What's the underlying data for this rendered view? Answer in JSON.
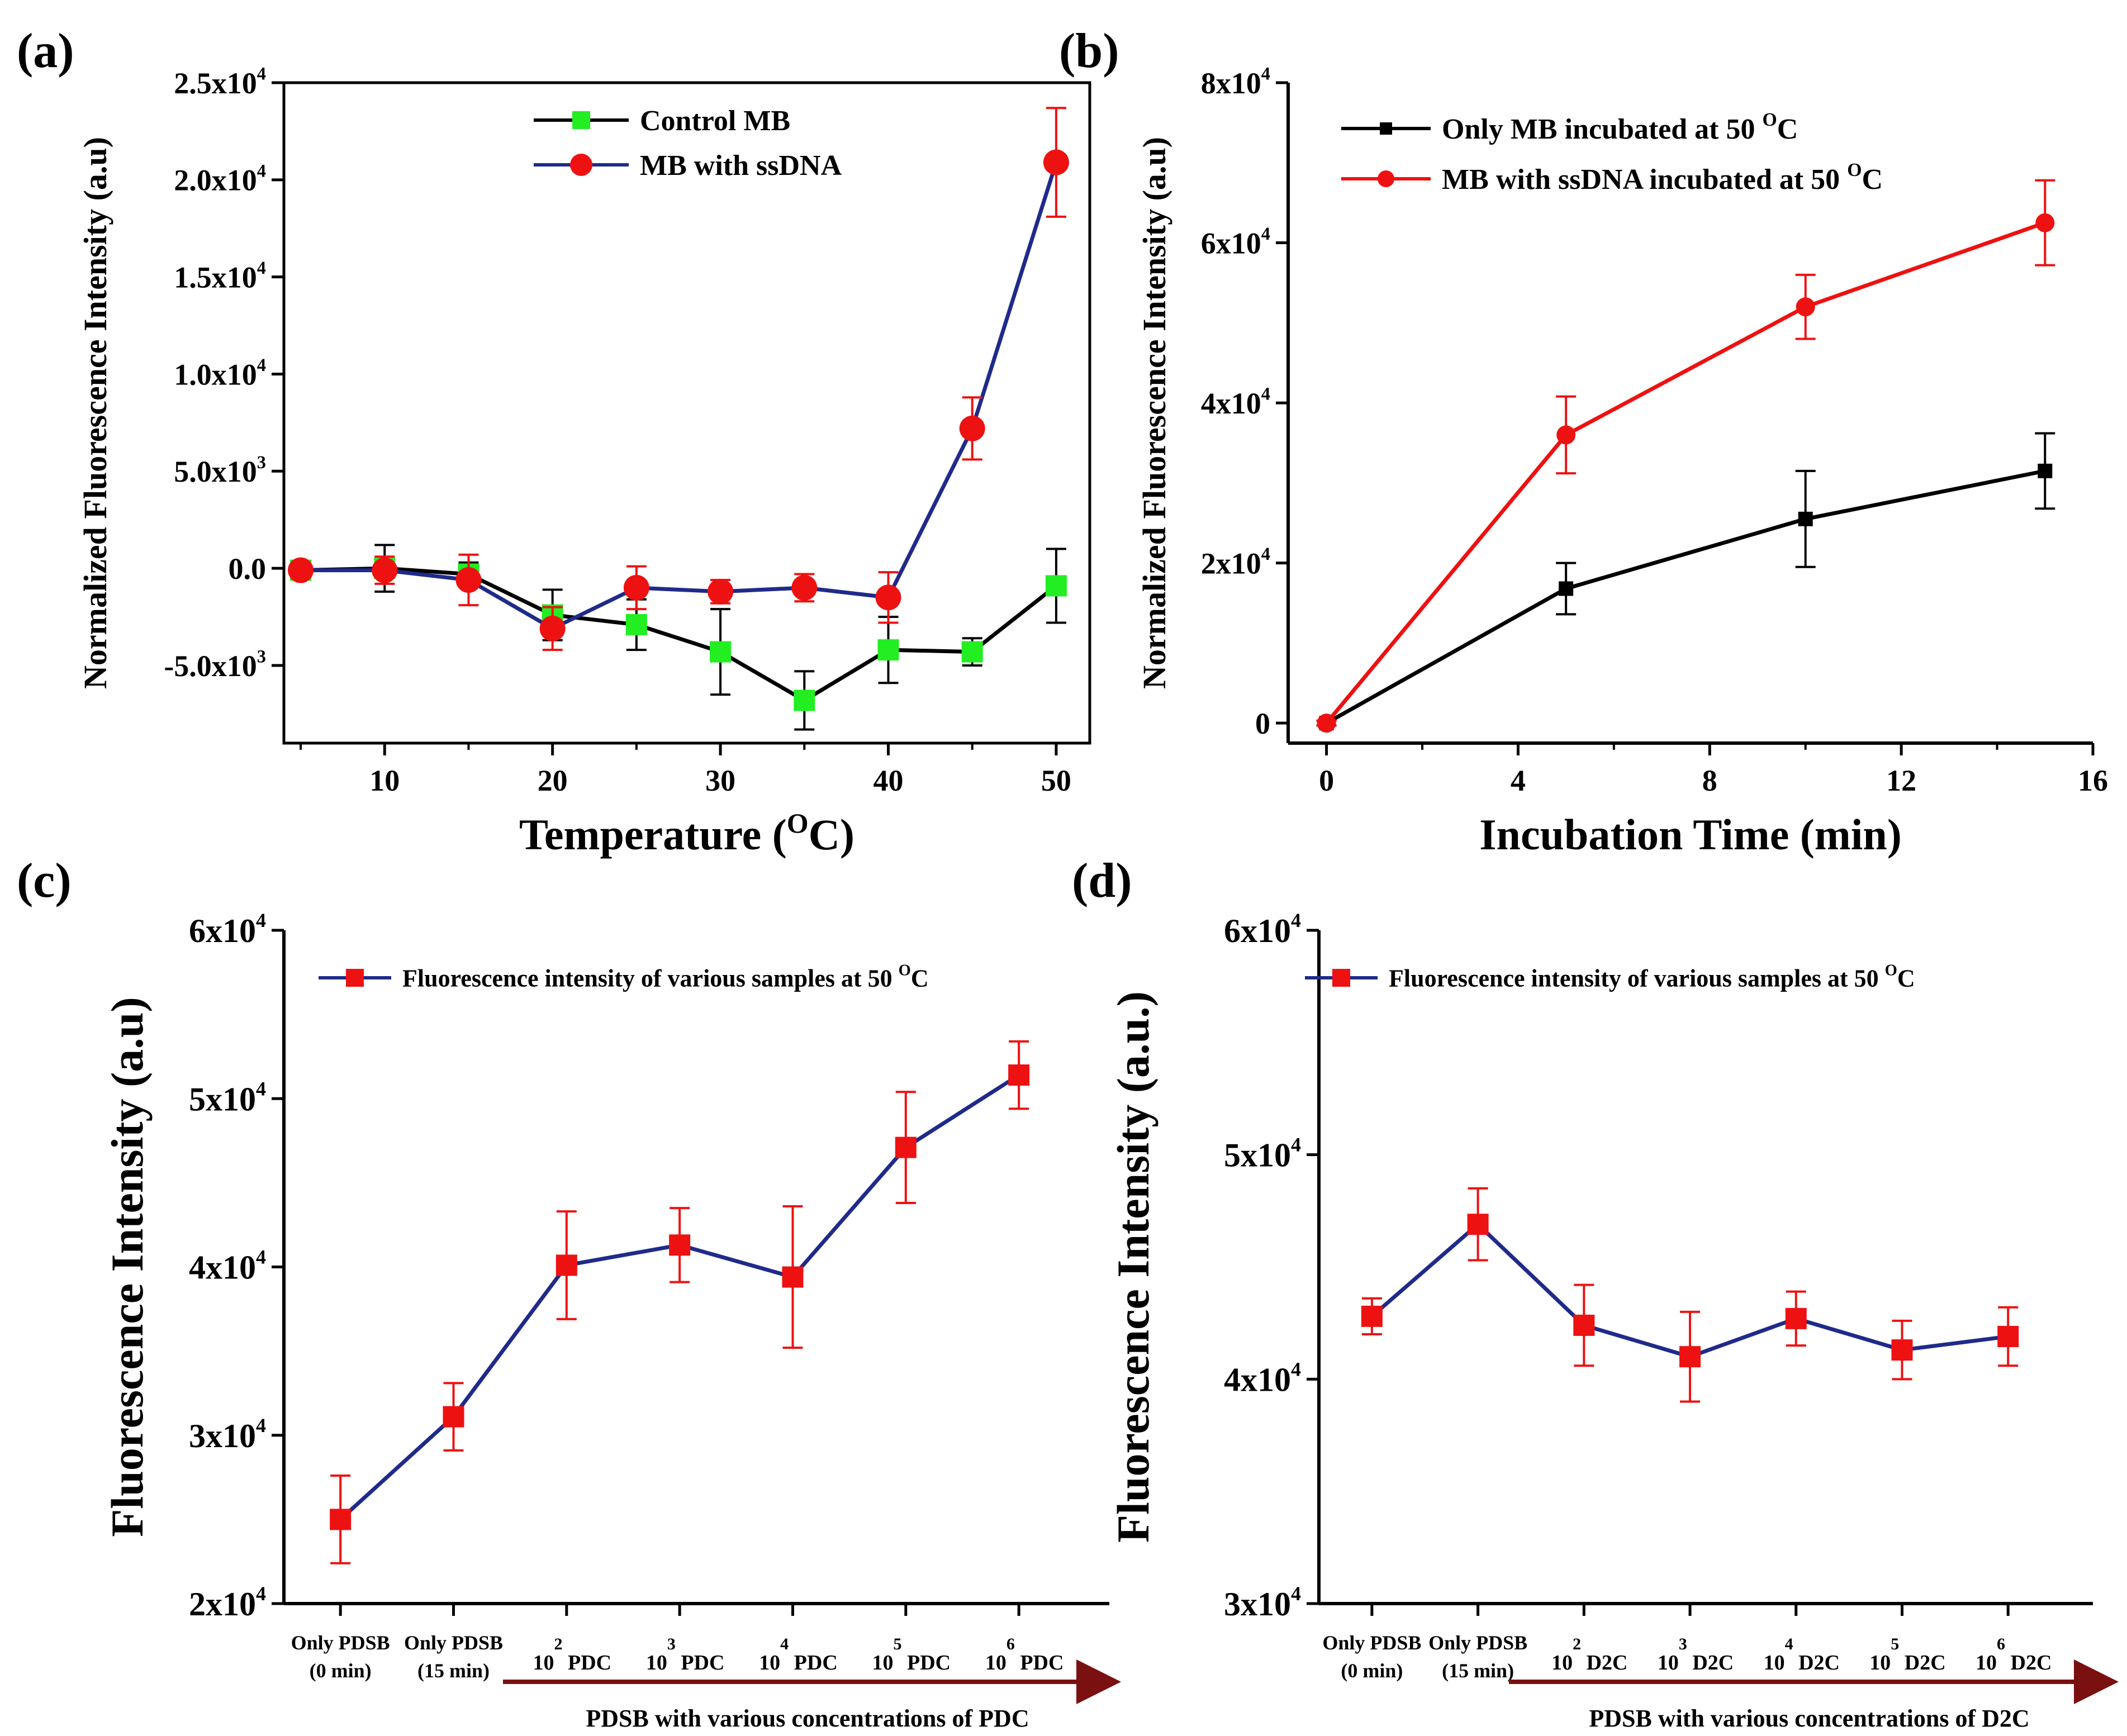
{
  "figure": {
    "arrow_color": "#7a1010"
  },
  "chart_data": [
    {
      "id": "a",
      "panel_label": "(a)",
      "type": "line",
      "xlabel": "Temperature",
      "xlabel_sup": "O",
      "xlabel_unit": "C)",
      "xlabel_open": "(",
      "ylabel": "Normalized Fluorescence Intensity (a.u)",
      "xlim": [
        4,
        52
      ],
      "ylim": [
        -9000,
        25000
      ],
      "x_ticks": [
        10,
        20,
        30,
        40,
        50
      ],
      "x_tick_labels": [
        "10",
        "20",
        "30",
        "40",
        "50"
      ],
      "y_ticks": [
        -5000,
        0,
        5000,
        10000,
        15000,
        20000,
        25000
      ],
      "y_tick_labels": [
        {
          "mant": "-5.0x10",
          "exp": "3"
        },
        {
          "mant": "0.0",
          "exp": ""
        },
        {
          "mant": "5.0x10",
          "exp": "3"
        },
        {
          "mant": "1.0x10",
          "exp": "4"
        },
        {
          "mant": "1.5x10",
          "exp": "4"
        },
        {
          "mant": "2.0x10",
          "exp": "4"
        },
        {
          "mant": "2.5x10",
          "exp": "4"
        }
      ],
      "legend_position": "top-center",
      "series": [
        {
          "name": "Control MB",
          "line_color": "#000000",
          "marker_color": "#22ee22",
          "marker": "square",
          "x": [
            5,
            10,
            15,
            20,
            25,
            30,
            35,
            40,
            45,
            50
          ],
          "values": [
            -100,
            0,
            -300,
            -2400,
            -2900,
            -4300,
            -6800,
            -4200,
            -4300,
            -900
          ],
          "errors": [
            200,
            1200,
            600,
            1300,
            1300,
            2200,
            1500,
            1700,
            700,
            1900
          ]
        },
        {
          "name": "MB with ssDNA",
          "line_color": "#1f2a8a",
          "marker_color": "#ee1111",
          "marker": "circle",
          "x": [
            5,
            10,
            15,
            20,
            25,
            30,
            35,
            40,
            45,
            50
          ],
          "values": [
            -100,
            -100,
            -600,
            -3100,
            -1000,
            -1200,
            -1000,
            -1500,
            7200,
            20900
          ],
          "errors": [
            200,
            700,
            1300,
            1100,
            1100,
            600,
            700,
            1300,
            1600,
            2800
          ]
        }
      ]
    },
    {
      "id": "b",
      "panel_label": "(b)",
      "type": "line",
      "xlabel": "Incubation Time (min)",
      "ylabel": "Normalized Fluorescence Intensity (a.u)",
      "xlim": [
        -0.8,
        16
      ],
      "ylim": [
        -2500,
        80000
      ],
      "x_ticks": [
        0,
        4,
        8,
        12,
        16
      ],
      "x_tick_labels": [
        "0",
        "4",
        "8",
        "12",
        "16"
      ],
      "y_ticks": [
        0,
        20000,
        40000,
        60000,
        80000
      ],
      "y_tick_labels": [
        {
          "mant": "0",
          "exp": ""
        },
        {
          "mant": "2x10",
          "exp": "4"
        },
        {
          "mant": "4x10",
          "exp": "4"
        },
        {
          "mant": "6x10",
          "exp": "4"
        },
        {
          "mant": "8x10",
          "exp": "4"
        }
      ],
      "legend_position": "top-left",
      "series": [
        {
          "name": "Only MB incubated at 50",
          "name_sup": "O",
          "name_end": "C",
          "line_color": "#000000",
          "marker_color": "#000000",
          "marker": "square",
          "x": [
            0,
            5,
            10,
            15
          ],
          "values": [
            0,
            16800,
            25500,
            31500
          ],
          "errors": [
            300,
            3200,
            6000,
            4700
          ]
        },
        {
          "name": "MB with ssDNA incubated at 50",
          "name_sup": "O",
          "name_end": "C",
          "line_color": "#ee1111",
          "marker_color": "#ee1111",
          "marker": "circle",
          "x": [
            0,
            5,
            10,
            15
          ],
          "values": [
            0,
            36000,
            52000,
            62500
          ],
          "errors": [
            300,
            4800,
            4000,
            5300
          ]
        }
      ]
    },
    {
      "id": "c",
      "panel_label": "(c)",
      "type": "line",
      "ylabel": "Fluorescence Intensity (a.u)",
      "xlim": [
        -0.5,
        6.8
      ],
      "ylim": [
        20000,
        60000
      ],
      "y_ticks": [
        20000,
        30000,
        40000,
        50000,
        60000
      ],
      "y_tick_labels": [
        {
          "mant": "2x10",
          "exp": "4"
        },
        {
          "mant": "3x10",
          "exp": "4"
        },
        {
          "mant": "4x10",
          "exp": "4"
        },
        {
          "mant": "5x10",
          "exp": "4"
        },
        {
          "mant": "6x10",
          "exp": "4"
        }
      ],
      "categories": [
        {
          "line1": "Only PDSB",
          "line2": "(0 min)"
        },
        {
          "line1": "Only PDSB",
          "line2": "(15 min)"
        },
        {
          "base": "10",
          "exp": "2",
          "suffix": "PDC"
        },
        {
          "base": "10",
          "exp": "3",
          "suffix": "PDC"
        },
        {
          "base": "10",
          "exp": "4",
          "suffix": "PDC"
        },
        {
          "base": "10",
          "exp": "5",
          "suffix": "PDC"
        },
        {
          "base": "10",
          "exp": "6",
          "suffix": "PDC"
        }
      ],
      "arrow_label": "PDSB with various concentrations of PDC",
      "legend_position": "top-left",
      "series": [
        {
          "name": "Fluorescence intensity of various samples at 50",
          "name_sup": "O",
          "name_end": "C",
          "line_color": "#1f2a8a",
          "marker_color": "#ee1111",
          "marker": "square",
          "values": [
            25000,
            31100,
            40100,
            41300,
            39400,
            47100,
            51400
          ],
          "errors": [
            2600,
            2000,
            3200,
            2200,
            4200,
            3300,
            2000
          ]
        }
      ]
    },
    {
      "id": "d",
      "panel_label": "(d)",
      "type": "line",
      "ylabel": "Fluorescence Intensity (a.u.)",
      "xlim": [
        -0.5,
        6.8
      ],
      "ylim": [
        30000,
        60000
      ],
      "y_ticks": [
        30000,
        40000,
        50000,
        60000
      ],
      "y_tick_labels": [
        {
          "mant": "3x10",
          "exp": "4"
        },
        {
          "mant": "4x10",
          "exp": "4"
        },
        {
          "mant": "5x10",
          "exp": "4"
        },
        {
          "mant": "6x10",
          "exp": "4"
        }
      ],
      "categories": [
        {
          "line1": "Only PDSB",
          "line2": "(0 min)"
        },
        {
          "line1": "Only PDSB",
          "line2": "(15 min)"
        },
        {
          "base": "10",
          "exp": "2",
          "suffix": "D2C"
        },
        {
          "base": "10",
          "exp": "3",
          "suffix": "D2C"
        },
        {
          "base": "10",
          "exp": "4",
          "suffix": "D2C"
        },
        {
          "base": "10",
          "exp": "5",
          "suffix": "D2C"
        },
        {
          "base": "10",
          "exp": "6",
          "suffix": "D2C"
        }
      ],
      "arrow_label": "PDSB with various concentrations of D2C",
      "legend_position": "top-left",
      "series": [
        {
          "name": "Fluorescence intensity of various samples at 50",
          "name_sup": "O",
          "name_end": "C",
          "line_color": "#1f2a8a",
          "marker_color": "#ee1111",
          "marker": "square",
          "values": [
            42800,
            46900,
            42400,
            41000,
            42700,
            41300,
            41900
          ],
          "errors": [
            800,
            1600,
            1800,
            2000,
            1200,
            1300,
            1300
          ]
        }
      ]
    }
  ]
}
